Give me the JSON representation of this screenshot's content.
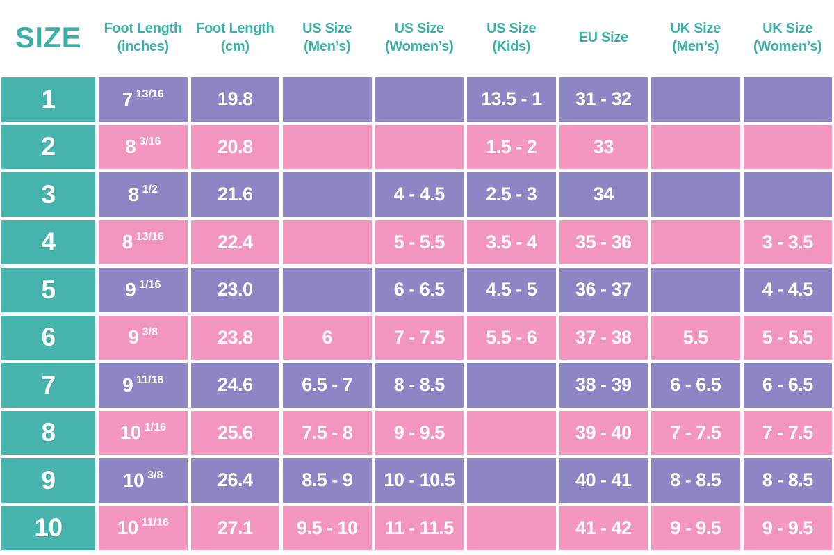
{
  "colors": {
    "teal": "#46b3ad",
    "purple": "#8c86c4",
    "pink": "#f295bf",
    "header_text": "#3cafa8",
    "cell_text": "#ffffff"
  },
  "chart_data": {
    "type": "table",
    "columns": [
      {
        "line1": "SIZE",
        "line2": ""
      },
      {
        "line1": "Foot Length",
        "line2": "(inches)"
      },
      {
        "line1": "Foot Length",
        "line2": "(cm)"
      },
      {
        "line1": "US Size",
        "line2": "(Men’s)"
      },
      {
        "line1": "US Size",
        "line2": "(Women’s)"
      },
      {
        "line1": "US Size",
        "line2": "(Kids)"
      },
      {
        "line1": "EU Size",
        "line2": ""
      },
      {
        "line1": "UK Size",
        "line2": "(Men’s)"
      },
      {
        "line1": "UK Size",
        "line2": "(Women’s)"
      }
    ],
    "rows": [
      {
        "size": "1",
        "inches": "7",
        "inches_frac": "13/16",
        "cm": "19.8",
        "us_men": "",
        "us_women": "",
        "us_kids": "13.5 - 1",
        "eu": "31 - 32",
        "uk_men": "",
        "uk_women": ""
      },
      {
        "size": "2",
        "inches": "8",
        "inches_frac": "3/16",
        "cm": "20.8",
        "us_men": "",
        "us_women": "",
        "us_kids": "1.5 - 2",
        "eu": "33",
        "uk_men": "",
        "uk_women": ""
      },
      {
        "size": "3",
        "inches": "8",
        "inches_frac": "1/2",
        "cm": "21.6",
        "us_men": "",
        "us_women": "4 - 4.5",
        "us_kids": "2.5 - 3",
        "eu": "34",
        "uk_men": "",
        "uk_women": ""
      },
      {
        "size": "4",
        "inches": "8",
        "inches_frac": "13/16",
        "cm": "22.4",
        "us_men": "",
        "us_women": "5 - 5.5",
        "us_kids": "3.5 - 4",
        "eu": "35 - 36",
        "uk_men": "",
        "uk_women": "3 - 3.5"
      },
      {
        "size": "5",
        "inches": "9",
        "inches_frac": "1/16",
        "cm": "23.0",
        "us_men": "",
        "us_women": "6 - 6.5",
        "us_kids": "4.5 - 5",
        "eu": "36 - 37",
        "uk_men": "",
        "uk_women": "4 - 4.5"
      },
      {
        "size": "6",
        "inches": "9",
        "inches_frac": "3/8",
        "cm": "23.8",
        "us_men": "6",
        "us_women": "7 - 7.5",
        "us_kids": "5.5 - 6",
        "eu": "37 - 38",
        "uk_men": "5.5",
        "uk_women": "5 - 5.5"
      },
      {
        "size": "7",
        "inches": "9",
        "inches_frac": "11/16",
        "cm": "24.6",
        "us_men": "6.5 - 7",
        "us_women": "8 - 8.5",
        "us_kids": "",
        "eu": "38 - 39",
        "uk_men": "6 - 6.5",
        "uk_women": "6 - 6.5"
      },
      {
        "size": "8",
        "inches": "10",
        "inches_frac": "1/16",
        "cm": "25.6",
        "us_men": "7.5 - 8",
        "us_women": "9 - 9.5",
        "us_kids": "",
        "eu": "39 - 40",
        "uk_men": "7 - 7.5",
        "uk_women": "7 - 7.5"
      },
      {
        "size": "9",
        "inches": "10",
        "inches_frac": "3/8",
        "cm": "26.4",
        "us_men": "8.5 - 9",
        "us_women": "10 - 10.5",
        "us_kids": "",
        "eu": "40 - 41",
        "uk_men": "8 - 8.5",
        "uk_women": "8 - 8.5"
      },
      {
        "size": "10",
        "inches": "10",
        "inches_frac": "11/16",
        "cm": "27.1",
        "us_men": "9.5 - 10",
        "us_women": "11 - 11.5",
        "us_kids": "",
        "eu": "41 - 42",
        "uk_men": "9 - 9.5",
        "uk_women": "9 - 9.5"
      }
    ]
  }
}
